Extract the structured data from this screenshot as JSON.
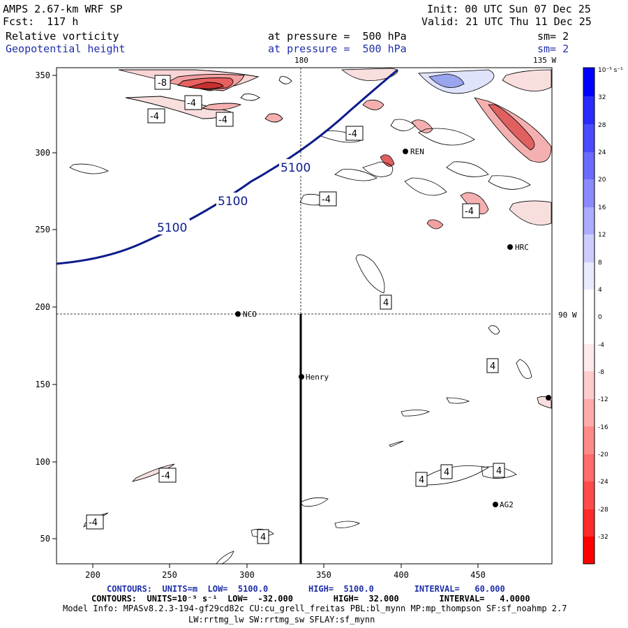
{
  "header": {
    "model": "AMPS 2.67-km WRF SP",
    "fcst": "Fcst:  117 h",
    "init": "Init: 00 UTC Sun 07 Dec 25",
    "valid": "Valid: 21 UTC Thu 11 Dec 25",
    "field1": {
      "name": "Relative vorticity",
      "level": "at pressure =  500 hPa",
      "sm": "sm= 2"
    },
    "field2": {
      "name": "Geopotential height",
      "level": "at pressure =  500 hPa",
      "sm": "sm= 2"
    }
  },
  "map": {
    "lon_labels": {
      "top_180": "180",
      "top_135w": "135 W",
      "right_90w": "90 W"
    },
    "x_ticks": [
      "200",
      "250",
      "300",
      "350",
      "400",
      "450"
    ],
    "y_ticks": [
      "350",
      "300",
      "250",
      "200",
      "150",
      "100",
      "50"
    ],
    "stations": [
      "NCO",
      "Henry",
      "HRC",
      "REN",
      "AG2"
    ],
    "height_labels": [
      "5100",
      "5100",
      "5100"
    ],
    "vort_labels": [
      "-8",
      "-4",
      "-4",
      "-4",
      "-4",
      "-4",
      "-4",
      "-4",
      "-4",
      "4",
      "4",
      "4",
      "4",
      "4",
      "4"
    ]
  },
  "colorbar": {
    "unit": "10⁻⁵ s⁻¹",
    "labels": [
      "32",
      "28",
      "24",
      "20",
      "16",
      "12",
      "8",
      "4",
      "0",
      "-4",
      "-8",
      "-12",
      "-16",
      "-20",
      "-24",
      "-28",
      "-32"
    ],
    "colors": {
      "pos_dark": "#0000ff",
      "neg_dark": "#ff0000",
      "height_line": "#0a1a8a"
    }
  },
  "footer": {
    "line1": "CONTOURS:  UNITS=m  LOW=  5100.0        HIGH=  5100.0        INTERVAL=   60.000",
    "line2": "CONTOURS:  UNITS=10⁻⁵ s⁻¹  LOW=  -32.000        HIGH=  32.000        INTERVAL=   4.0000",
    "line3": "Model Info: MPASv8.2.3-194-gf29cd82c CU:cu_grell_freitas PBL:bl_mynn MP:mp_thompson SF:sf_noahmp 2.7",
    "line4": "LW:rrtmg_lw SW:rrtmg_sw SFLAY:sf_mynn"
  }
}
